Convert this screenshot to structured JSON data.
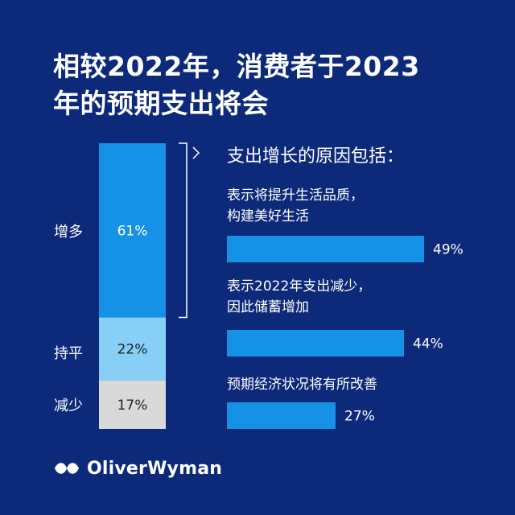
{
  "header": {
    "title_lines": [
      "相较2022年，消费者于2023",
      "年的预期支出将会"
    ]
  },
  "chart_data": [
    {
      "type": "bar",
      "orientation": "stacked-vertical",
      "categories": [
        "增多",
        "持平",
        "减少"
      ],
      "values": [
        61,
        22,
        17
      ],
      "value_labels": [
        "61%",
        "22%",
        "17%"
      ],
      "ylim": [
        0,
        100
      ],
      "colors": [
        "#1592e6",
        "#87cff7",
        "#d9d9d9"
      ]
    },
    {
      "type": "bar",
      "orientation": "horizontal",
      "title": "支出增长的原因包括：",
      "categories": [
        [
          "表示将提升生活品质，",
          "构建美好生活"
        ],
        [
          "表示2022年支出减少，",
          "因此储蓄增加"
        ],
        [
          "预期经济状况将有所改善"
        ]
      ],
      "values": [
        49,
        44,
        27
      ],
      "value_labels": [
        "49%",
        "44%",
        "27%"
      ],
      "xlim": [
        0,
        100
      ],
      "color": "#1592e6"
    }
  ],
  "brand": {
    "name": "OliverWyman",
    "icon": "oliver-wyman-logo-icon"
  },
  "colors": {
    "background": "#0d2a7a",
    "text": "#ffffff",
    "value_text_light": "#ffffff",
    "value_text_dark": "#222222",
    "bracket": "#ffffff"
  }
}
